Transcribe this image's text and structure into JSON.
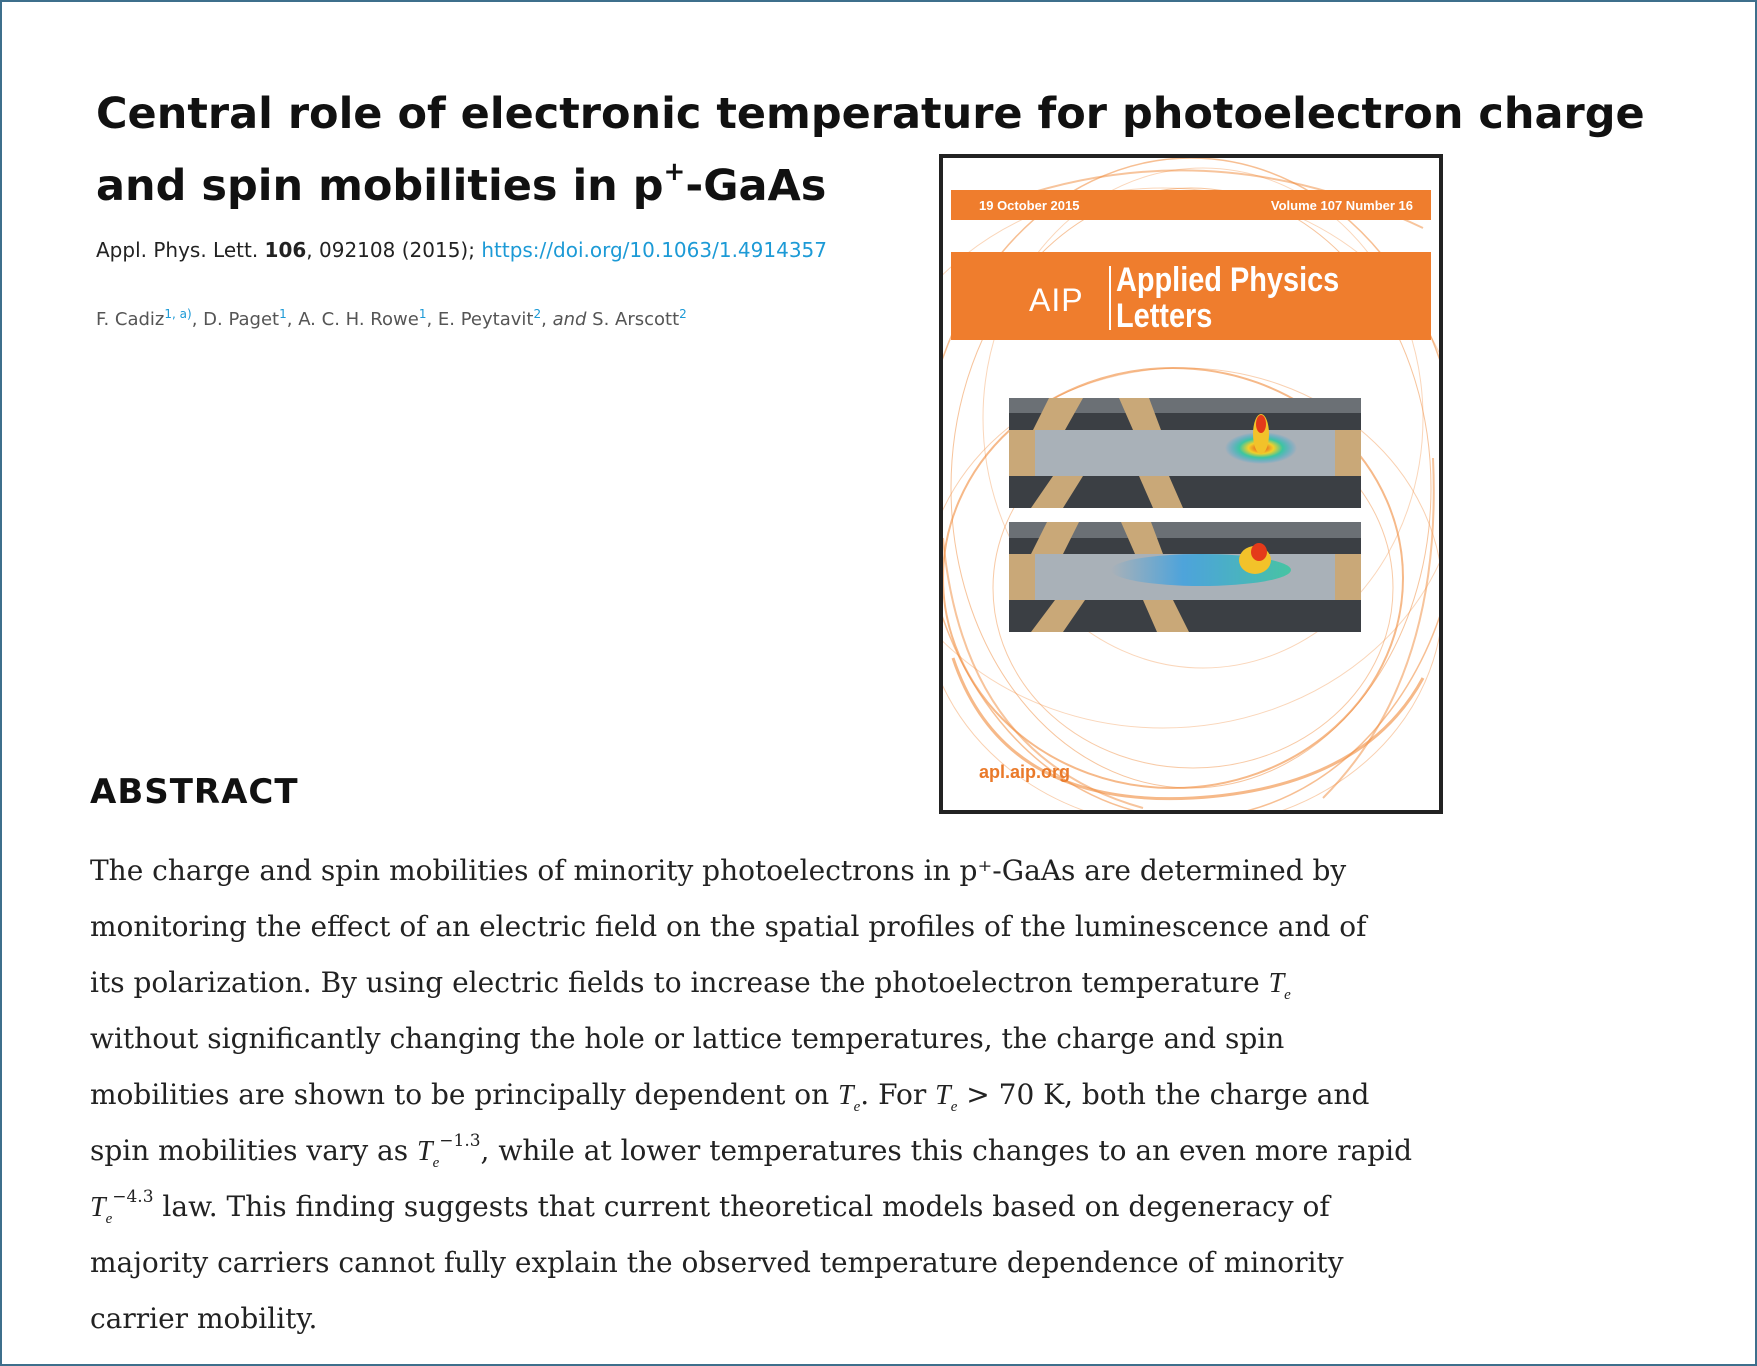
{
  "article": {
    "title_line1": "Central role of electronic temperature for photoelectron charge",
    "title_line2_pre": "and spin mobilities in p",
    "title_line2_sup": "+",
    "title_line2_post": "-GaAs"
  },
  "citation": {
    "journal": "Appl. Phys. Lett.",
    "volume": "106",
    "rest": ", 092108 (2015);",
    "doi": "https://doi.org/10.1063/1.4914357"
  },
  "authors": [
    {
      "name": "F. Cadiz",
      "aff": "1, a)"
    },
    {
      "name": "D. Paget",
      "aff": "1"
    },
    {
      "name": "A. C. H. Rowe",
      "aff": "1"
    },
    {
      "name": "E. Peytavit",
      "aff": "2"
    },
    {
      "name": "S. Arscott",
      "aff": "2"
    }
  ],
  "authors_text": {
    "sep": ", ",
    "and": "and"
  },
  "cover": {
    "date": "19 October 2015",
    "volume": "Volume 107 Number 16",
    "publisher": "AIP",
    "journal_line1": "Applied Physics",
    "journal_line2": "Letters",
    "url": "apl.aip.org",
    "accent_color": "#ef7d2d"
  },
  "abstract": {
    "heading": "ABSTRACT",
    "l1": "The charge and spin mobilities of minority photoelectrons in p⁺-GaAs are determined by",
    "l2": "monitoring the effect of an electric field on the spatial profiles of the luminescence and of",
    "l3": "its polarization. By using electric fields to increase the photoelectron temperature ",
    "l4": "without significantly changing the hole or lattice temperatures, the charge and spin",
    "l5a": "mobilities are shown to be principally dependent on ",
    "l5b": ". For ",
    "l5c": " > 70 K, both the charge and",
    "l6a": "spin mobilities vary as ",
    "l6b": ", while at lower temperatures this changes to an even more rapid",
    "l7": " law. This finding suggests that current theoretical models based on degeneracy of",
    "l8": "majority carriers cannot fully explain the observed temperature dependence of minority",
    "l9": "carrier mobility.",
    "sym_T": "T",
    "sym_e": "e",
    "exp1": "−1.3",
    "exp2": "−4.3"
  }
}
